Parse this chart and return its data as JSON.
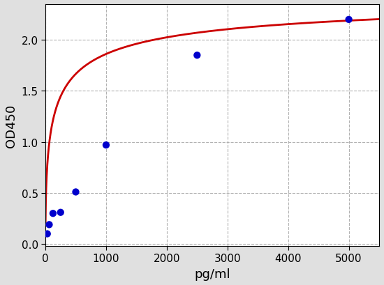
{
  "x_data": [
    31.25,
    62.5,
    125,
    250,
    500,
    1000,
    2500,
    5000
  ],
  "y_data": [
    0.1,
    0.19,
    0.3,
    0.31,
    0.51,
    0.97,
    1.85,
    2.2
  ],
  "xlabel": "pg/ml",
  "ylabel": "OD450",
  "xlim": [
    0,
    5500
  ],
  "ylim": [
    -0.02,
    2.35
  ],
  "x_ticks": [
    0,
    1000,
    2000,
    3000,
    4000,
    5000
  ],
  "y_ticks": [
    0.0,
    0.5,
    1.0,
    1.5,
    2.0
  ],
  "dot_color": "#0000cc",
  "curve_color": "#cc0000",
  "background_color": "#e0e0e0",
  "plot_bg_color": "#ffffff",
  "grid_color": "#aaaaaa",
  "dot_size": 55,
  "curve_linewidth": 2.0,
  "tick_labelsize": 11,
  "axis_labelsize": 13
}
